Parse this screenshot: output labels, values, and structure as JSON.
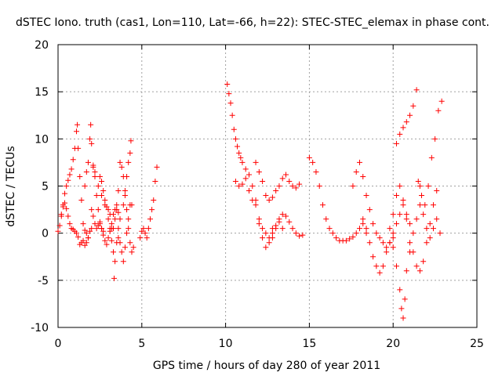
{
  "chart_data": {
    "type": "scatter",
    "title": "dSTEC Iono. truth (cas1, Lon=110, Lat=-66, h=22): STEC-STEC_elemax in phase cont.",
    "xlabel": "GPS time / hours of day 280 of year 2011",
    "ylabel": "dSTEC  / TECUs",
    "xlim": [
      0,
      25
    ],
    "ylim": [
      -10,
      20
    ],
    "xticks": [
      0,
      5,
      10,
      15,
      20,
      25
    ],
    "yticks": [
      -10,
      -5,
      0,
      5,
      10,
      15,
      20
    ],
    "xtick_labels": [
      "0",
      "5",
      "10",
      "15",
      "20",
      "25"
    ],
    "ytick_labels": [
      "-10",
      "-5",
      "0",
      "5",
      "10",
      "15",
      "20"
    ],
    "grid": true,
    "marker": "plus",
    "marker_color": "#ff0000",
    "series": [
      {
        "name": "",
        "color": "#ff0000",
        "x": [
          0.0,
          0.1,
          0.2,
          0.3,
          0.4,
          0.5,
          0.6,
          0.7,
          0.8,
          0.9,
          1.0,
          1.1,
          1.15,
          1.2,
          1.3,
          1.4,
          1.5,
          1.6,
          1.7,
          1.8
        ],
        "y": [
          0.2,
          0.8,
          1.8,
          3.0,
          4.2,
          5.0,
          5.6,
          6.2,
          6.8,
          7.8,
          9.0,
          10.8,
          11.5,
          9.0,
          6.0,
          3.5,
          1.0,
          0.3,
          0.0,
          -0.5
        ]
      },
      {
        "name": "",
        "color": "#ff0000",
        "x": [
          0.2,
          0.3,
          0.4,
          0.5,
          0.6,
          0.7,
          0.8,
          0.9,
          1.0,
          1.1,
          1.2,
          1.3,
          1.4,
          1.5,
          1.6,
          1.7,
          1.8,
          1.9,
          2.0
        ],
        "y": [
          2.0,
          2.8,
          3.2,
          2.6,
          1.8,
          1.0,
          0.5,
          0.4,
          0.2,
          0.0,
          -0.4,
          -1.2,
          -1.0,
          -0.8,
          -1.3,
          -1.0,
          -0.5,
          0.2,
          0.5
        ]
      },
      {
        "name": "",
        "color": "#ff0000",
        "x": [
          1.6,
          1.7,
          1.8,
          1.9,
          1.95,
          2.0,
          2.1,
          2.2,
          2.3,
          2.4,
          2.5,
          2.6,
          2.7
        ],
        "y": [
          5.0,
          6.5,
          7.5,
          10.0,
          11.5,
          9.5,
          7.0,
          6.0,
          4.0,
          2.5,
          1.0,
          0.5,
          0.2
        ]
      },
      {
        "name": "",
        "color": "#ff0000",
        "x": [
          2.0,
          2.1,
          2.2,
          2.3,
          2.4,
          2.5,
          2.6,
          2.7,
          2.8,
          2.9,
          3.0,
          3.1,
          3.2
        ],
        "y": [
          2.5,
          1.8,
          1.0,
          0.5,
          0.8,
          1.2,
          0.5,
          -0.2,
          -0.8,
          -1.2,
          -0.5,
          0.2,
          -0.8
        ]
      },
      {
        "name": "",
        "color": "#ff0000",
        "x": [
          2.1,
          2.2,
          2.4,
          2.6,
          2.8,
          3.0,
          3.1,
          3.2,
          3.3,
          3.35,
          3.4,
          3.5,
          3.6
        ],
        "y": [
          7.2,
          6.5,
          5.0,
          4.0,
          3.0,
          2.5,
          2.0,
          0.5,
          -2.0,
          -4.8,
          -3.0,
          -1.0,
          0.5
        ]
      },
      {
        "name": "",
        "color": "#ff0000",
        "x": [
          2.5,
          2.6,
          2.7,
          2.8,
          2.9,
          3.0,
          3.1,
          3.2,
          3.3,
          3.4,
          3.5,
          3.6,
          3.7
        ],
        "y": [
          6.0,
          5.5,
          4.5,
          3.5,
          2.8,
          1.5,
          0.5,
          1.0,
          2.0,
          2.5,
          3.0,
          2.2,
          1.5
        ]
      },
      {
        "name": "",
        "color": "#ff0000",
        "x": [
          3.3,
          3.4,
          3.5,
          3.6,
          3.7,
          3.8,
          3.9,
          4.0,
          4.1,
          4.2,
          4.3
        ],
        "y": [
          0.5,
          1.5,
          2.5,
          4.5,
          7.5,
          7.0,
          6.0,
          4.0,
          2.5,
          0.5,
          -1.0
        ]
      },
      {
        "name": "",
        "color": "#ff0000",
        "x": [
          3.6,
          3.7,
          3.8,
          3.9,
          4.0,
          4.1,
          4.2,
          4.3,
          4.4
        ],
        "y": [
          -0.5,
          -1.0,
          -2.0,
          -3.0,
          -1.5,
          0.0,
          1.5,
          3.0,
          -2.0
        ]
      },
      {
        "name": "",
        "color": "#ff0000",
        "x": [
          3.9,
          4.0,
          4.1,
          4.2,
          4.3,
          4.35,
          4.4,
          4.5
        ],
        "y": [
          3.0,
          4.5,
          6.0,
          7.5,
          8.5,
          9.8,
          3.0,
          -1.5
        ]
      },
      {
        "name": "",
        "color": "#ff0000",
        "x": [
          4.9,
          5.0,
          5.1,
          5.2,
          5.3,
          5.4,
          5.5,
          5.6,
          5.7,
          5.8,
          5.9
        ],
        "y": [
          -0.5,
          0.2,
          0.5,
          0.0,
          -0.5,
          0.5,
          1.5,
          2.5,
          3.5,
          5.5,
          7.0
        ]
      },
      {
        "name": "",
        "color": "#ff0000",
        "x": [
          10.1,
          10.2,
          10.3,
          10.4,
          10.5,
          10.6,
          10.7,
          10.8,
          10.9,
          11.0,
          11.2,
          11.4,
          11.6,
          11.8,
          12.0,
          12.2,
          12.4,
          12.6,
          12.8
        ],
        "y": [
          15.8,
          14.8,
          13.8,
          12.5,
          11.0,
          10.0,
          9.2,
          8.5,
          8.0,
          7.5,
          6.8,
          6.2,
          5.0,
          3.5,
          1.0,
          -0.5,
          -1.5,
          -1.0,
          0.5
        ]
      },
      {
        "name": "",
        "color": "#ff0000",
        "x": [
          10.6,
          10.8,
          11.0,
          11.2,
          11.4,
          11.6,
          11.8,
          12.0,
          12.2,
          12.4,
          12.6,
          12.8,
          13.0,
          13.2,
          13.4
        ],
        "y": [
          5.5,
          5.0,
          5.2,
          5.8,
          4.5,
          3.5,
          3.0,
          1.5,
          0.5,
          0.0,
          -0.5,
          0.0,
          0.8,
          1.2,
          0.5
        ]
      },
      {
        "name": "",
        "color": "#ff0000",
        "x": [
          11.8,
          12.0,
          12.2,
          12.4,
          12.6,
          12.8,
          13.0,
          13.2,
          13.4,
          13.6,
          13.8,
          14.0,
          14.2,
          14.4
        ],
        "y": [
          7.5,
          6.5,
          5.5,
          4.0,
          3.5,
          3.8,
          4.5,
          5.0,
          5.8,
          6.2,
          5.5,
          5.0,
          4.8,
          5.2
        ]
      },
      {
        "name": "",
        "color": "#ff0000",
        "x": [
          12.8,
          13.0,
          13.2,
          13.4,
          13.6,
          13.8,
          14.0,
          14.2,
          14.4,
          14.6
        ],
        "y": [
          -0.5,
          0.5,
          1.5,
          2.0,
          1.8,
          1.2,
          0.5,
          0.0,
          -0.3,
          -0.2
        ]
      },
      {
        "name": "",
        "color": "#ff0000",
        "x": [
          15.0,
          15.2,
          15.4,
          15.6,
          15.8,
          16.0,
          16.2,
          16.4,
          16.6,
          16.8,
          17.0,
          17.2,
          17.4,
          17.6,
          17.8,
          18.0,
          18.2,
          18.4
        ],
        "y": [
          8.0,
          7.5,
          6.5,
          5.0,
          3.0,
          1.5,
          0.5,
          0.0,
          -0.5,
          -0.8,
          -0.8,
          -0.8,
          -0.6,
          -0.4,
          0.0,
          0.5,
          1.0,
          0.5
        ]
      },
      {
        "name": "",
        "color": "#ff0000",
        "x": [
          17.6,
          17.8,
          18.0,
          18.2,
          18.4,
          18.6,
          18.8,
          19.0,
          19.2,
          19.4,
          19.6,
          19.8,
          20.0
        ],
        "y": [
          5.0,
          6.5,
          7.5,
          6.0,
          4.0,
          2.5,
          1.0,
          0.0,
          -0.5,
          -1.0,
          -1.5,
          -1.0,
          -0.5
        ]
      },
      {
        "name": "",
        "color": "#ff0000",
        "x": [
          18.2,
          18.4,
          18.6,
          18.8,
          19.0,
          19.2,
          19.4,
          19.6,
          19.8,
          20.0,
          20.2,
          20.4,
          20.6,
          20.8,
          21.0
        ],
        "y": [
          1.5,
          0.0,
          -1.0,
          -2.5,
          -3.5,
          -4.2,
          -3.5,
          -2.0,
          -1.0,
          0.0,
          1.0,
          2.0,
          3.0,
          2.0,
          1.0
        ]
      },
      {
        "name": "",
        "color": "#ff0000",
        "x": [
          19.8,
          20.0,
          20.2,
          20.4,
          20.5,
          20.6,
          20.7,
          20.8,
          21.0,
          21.2,
          21.4,
          21.6
        ],
        "y": [
          0.5,
          -1.5,
          -3.5,
          -6.0,
          -8.0,
          -9.0,
          -7.0,
          -4.0,
          -2.0,
          0.0,
          1.5,
          3.0
        ]
      },
      {
        "name": "",
        "color": "#ff0000",
        "x": [
          20.2,
          20.4,
          20.6,
          20.8,
          21.0,
          21.2,
          21.4,
          21.6,
          21.8,
          22.0,
          22.2,
          22.4,
          22.6,
          22.8
        ],
        "y": [
          9.5,
          10.5,
          11.2,
          11.8,
          12.5,
          13.5,
          15.2,
          5.0,
          2.0,
          0.5,
          -0.5,
          0.5,
          1.5,
          0.0
        ]
      },
      {
        "name": "",
        "color": "#ff0000",
        "x": [
          20.0,
          20.2,
          20.4,
          20.6,
          20.8,
          21.0,
          21.2,
          21.4,
          21.6,
          21.8,
          22.0,
          22.2,
          22.4,
          22.6
        ],
        "y": [
          2.0,
          4.0,
          5.0,
          3.5,
          1.5,
          -1.0,
          -2.0,
          -3.5,
          -4.0,
          -3.0,
          -1.0,
          1.0,
          3.0,
          4.5
        ]
      },
      {
        "name": "",
        "color": "#ff0000",
        "x": [
          21.5,
          21.7,
          21.9,
          22.1,
          22.3,
          22.5,
          22.7,
          22.9
        ],
        "y": [
          5.5,
          4.0,
          3.0,
          5.0,
          8.0,
          10.0,
          13.0,
          14.0
        ]
      }
    ]
  }
}
